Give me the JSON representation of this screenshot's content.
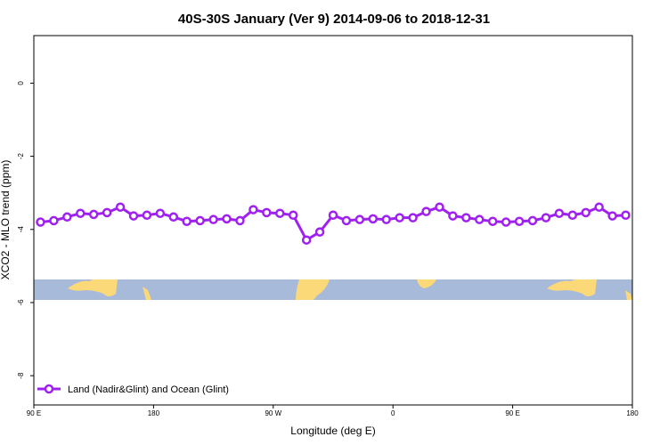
{
  "chart_data": {
    "type": "line",
    "title": "40S-30S January (Ver 9)   2014-09-06 to 2018-12-31",
    "x_label": "Longitude (deg E)",
    "y_label": "XCO2 - MLO trend (ppm)",
    "xlim": [
      90,
      540
    ],
    "xticks": [
      {
        "value": 90,
        "label": "90 E"
      },
      180,
      {
        "value": 270,
        "label": "90 W"
      },
      {
        "value": 360,
        "label": "0"
      },
      {
        "value": 450,
        "label": "90 E"
      },
      {
        "value": 540,
        "label": "180"
      }
    ],
    "ylim": [
      -8.8,
      1.3
    ],
    "yticks": [
      0,
      -2,
      -4,
      -6,
      -8
    ],
    "legend": "bottom-left",
    "x": [
      95,
      105,
      115,
      125,
      135,
      145,
      155,
      165,
      175,
      185,
      195,
      205,
      215,
      225,
      235,
      245,
      255,
      265,
      275,
      285,
      295,
      305,
      315,
      325,
      335,
      345,
      355,
      365,
      375,
      385,
      395,
      405,
      415,
      425,
      435,
      445,
      455,
      465,
      475,
      485,
      495,
      505,
      515,
      525,
      535
    ],
    "series": [
      {
        "name": "Land (Nadir&Glint) and Ocean (Glint)",
        "color": "#a020f0",
        "values": [
          -3.8,
          -3.76,
          -3.66,
          -3.56,
          -3.59,
          -3.54,
          -3.39,
          -3.63,
          -3.61,
          -3.56,
          -3.66,
          -3.78,
          -3.76,
          -3.73,
          -3.71,
          -3.76,
          -3.46,
          -3.54,
          -3.56,
          -3.61,
          -4.29,
          -4.07,
          -3.61,
          -3.76,
          -3.73,
          -3.71,
          -3.73,
          -3.68,
          -3.68,
          -3.51,
          -3.39,
          -3.63,
          -3.68,
          -3.73,
          -3.78,
          -3.8,
          -3.78,
          -3.76,
          -3.68,
          -3.56,
          -3.61,
          -3.54,
          -3.39,
          -3.63,
          -3.61
        ]
      }
    ]
  }
}
